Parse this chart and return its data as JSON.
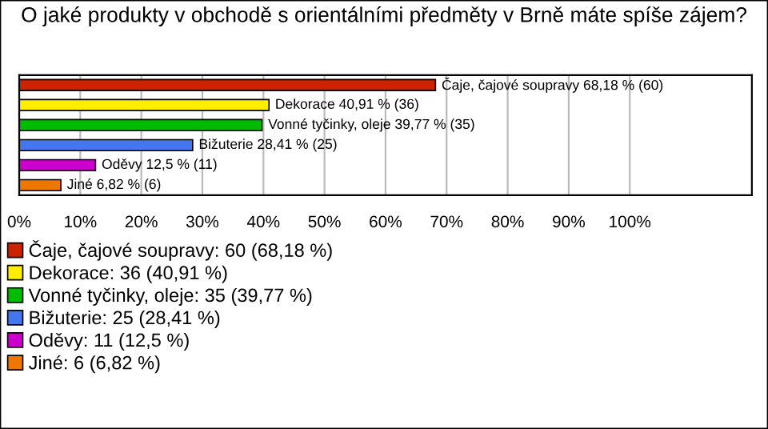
{
  "chart_data": {
    "type": "bar",
    "orientation": "horizontal",
    "title": "O jaké produkty v obchodě s orientálními předměty v Brně máte spíše zájem?",
    "categories": [
      null,
      null,
      null,
      null,
      null,
      null
    ],
    "series": [
      {
        "name": "Čaje, čajové soupravy: 60 (68,18 %)",
        "color": "#cc2200",
        "values": [
          68.18,
          null,
          null,
          null,
          null,
          null
        ],
        "value_labels": [
          "Čaje, čajové soupravy 68,18 % (60)",
          null,
          null,
          null,
          null,
          null
        ]
      },
      {
        "name": "Dekorace: 36 (40,91 %)",
        "color": "#ffee00",
        "values": [
          null,
          40.91,
          null,
          null,
          null,
          null
        ],
        "value_labels": [
          null,
          "Dekorace 40,91 % (36)",
          null,
          null,
          null,
          null
        ]
      },
      {
        "name": "Vonné tyčinky, oleje: 35 (39,77 %)",
        "color": "#00bb00",
        "values": [
          null,
          null,
          39.77,
          null,
          null,
          null
        ],
        "value_labels": [
          null,
          null,
          "Vonné tyčinky, oleje 39,77 % (35)",
          null,
          null,
          null
        ]
      },
      {
        "name": "Bižuterie: 25 (28,41 %)",
        "color": "#4477ee",
        "values": [
          null,
          null,
          null,
          28.41,
          null,
          null
        ],
        "value_labels": [
          null,
          null,
          null,
          "Bižuterie 28,41 % (25)",
          null,
          null
        ]
      },
      {
        "name": "Oděvy: 11 (12,5 %)",
        "color": "#cc00cc",
        "values": [
          null,
          null,
          null,
          null,
          12.5,
          null
        ],
        "value_labels": [
          null,
          null,
          null,
          null,
          "Oděvy 12,5 % (11)",
          null
        ]
      },
      {
        "name": "Jiné: 6 (6,82 %)",
        "color": "#ee7700",
        "values": [
          null,
          null,
          null,
          null,
          null,
          6.82
        ],
        "value_labels": [
          null,
          null,
          null,
          null,
          null,
          "Jiné 6,82 % (6)"
        ]
      }
    ],
    "xlim": [
      0,
      120
    ],
    "xticks": [
      {
        "value": 0,
        "label": "0%"
      },
      {
        "value": 10,
        "label": "10%"
      },
      {
        "value": 20,
        "label": "20%"
      },
      {
        "value": 30,
        "label": "30%"
      },
      {
        "value": 40,
        "label": "40%"
      },
      {
        "value": 50,
        "label": "50%"
      },
      {
        "value": 60,
        "label": "60%"
      },
      {
        "value": 70,
        "label": "70%"
      },
      {
        "value": 80,
        "label": "80%"
      },
      {
        "value": 90,
        "label": "90%"
      },
      {
        "value": 100,
        "label": "100%"
      }
    ],
    "grid": "x",
    "legend": "bottom"
  }
}
